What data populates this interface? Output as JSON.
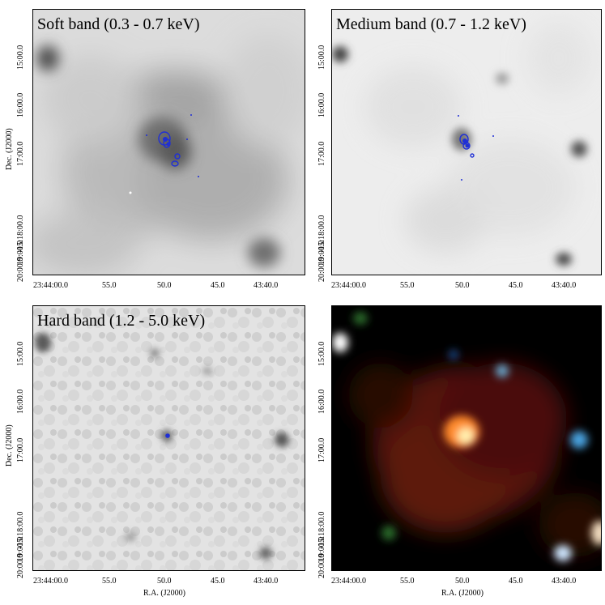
{
  "figure": {
    "panels": [
      {
        "title": "Soft band (0.3 - 0.7 keV)"
      },
      {
        "title": "Medium band (0.7 - 1.2 keV)"
      },
      {
        "title": "Hard band (1.2 - 5.0 keV)"
      },
      {
        "title": ""
      }
    ],
    "y_axis": {
      "label": "Dec. (J2000)",
      "ticks": [
        "15:00.0",
        "16:00.0",
        "17:00.0",
        "-15:18:00.0",
        "19:00.0",
        "20:00.0"
      ]
    },
    "x_axis": {
      "label": "R.A. (J2000)",
      "ticks": [
        "23:44:00.0",
        "55.0",
        "50.0",
        "45.0",
        "43:40.0"
      ]
    },
    "colors": {
      "contour": "#1f2fd6",
      "greyscale_bg": "#e6e6e6",
      "rgb_bg": "#000000"
    }
  }
}
